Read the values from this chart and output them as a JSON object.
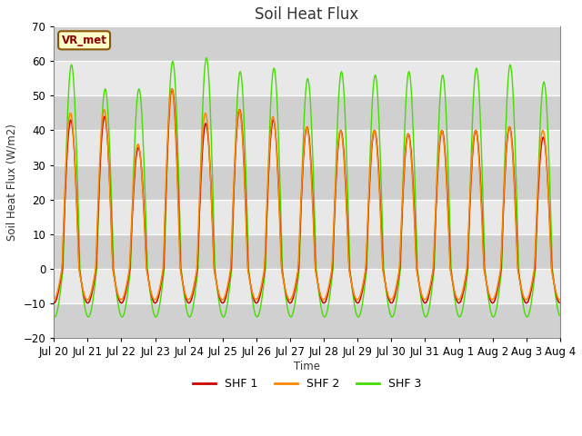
{
  "title": "Soil Heat Flux",
  "ylabel": "Soil Heat Flux (W/m2)",
  "xlabel": "Time",
  "ylim": [
    -20,
    70
  ],
  "yticks": [
    -20,
    -10,
    0,
    10,
    20,
    30,
    40,
    50,
    60,
    70
  ],
  "fig_bg_color": "#ffffff",
  "plot_bg_color": "#e8e8e8",
  "band_color": "#d0d0d0",
  "legend_label": "VR_met",
  "series_labels": [
    "SHF 1",
    "SHF 2",
    "SHF 3"
  ],
  "series_colors": [
    "#cc0000",
    "#ff8800",
    "#44dd00"
  ],
  "tick_labels": [
    "Jul 20",
    "Jul 21",
    "Jul 22",
    "Jul 23",
    "Jul 24",
    "Jul 25",
    "Jul 26",
    "Jul 27",
    "Jul 28",
    "Jul 29",
    "Jul 30",
    "Jul 31",
    "Aug 1",
    "Aug 2",
    "Aug 3",
    "Aug 4"
  ],
  "n_days": 15,
  "points_per_day": 48
}
